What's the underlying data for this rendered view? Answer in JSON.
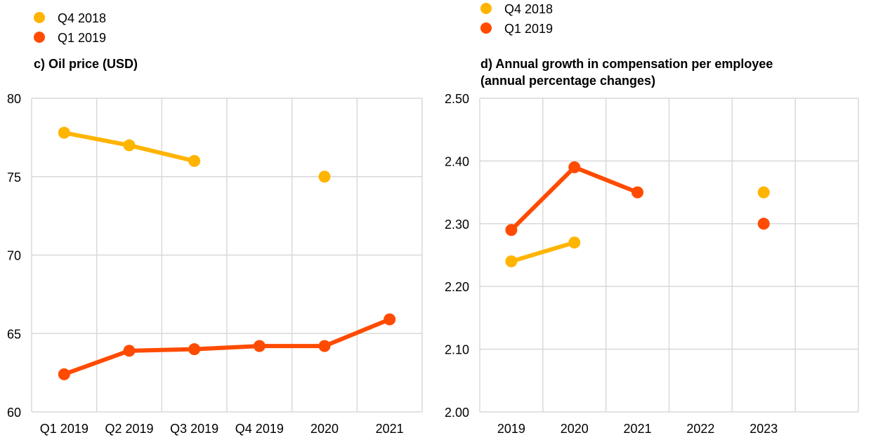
{
  "colors": {
    "q4_2018": "#FFB400",
    "q1_2019": "#FF4B00",
    "grid": "#d9d9d9"
  },
  "chart_data": [
    {
      "type": "line",
      "title": "c) Oil price (USD)",
      "legend": [
        "Q4 2018",
        "Q1 2019"
      ],
      "categories": [
        "Q1 2019",
        "Q2 2019",
        "Q3 2019",
        "Q4 2019",
        "2020",
        "2021"
      ],
      "ylim": [
        60,
        80
      ],
      "yticks": [
        "80",
        "75",
        "70",
        "65",
        "60"
      ],
      "series": [
        {
          "name": "Q4 2018",
          "color": "#FFB400",
          "values": [
            77.8,
            77.0,
            76.0,
            null,
            75.0,
            null
          ]
        },
        {
          "name": "Q1 2019",
          "color": "#FF4B00",
          "values": [
            62.4,
            63.9,
            64.0,
            64.2,
            64.2,
            65.9
          ]
        }
      ],
      "grid": true
    },
    {
      "type": "line",
      "title_lines": [
        "d) Annual growth in compensation per employee",
        "(annual percentage changes)"
      ],
      "legend": [
        "Q4 2018",
        "Q1 2019"
      ],
      "categories": [
        "2019",
        "2020",
        "2021",
        "2022",
        "2023"
      ],
      "ylim": [
        2.0,
        2.5
      ],
      "yticks": [
        "2.50",
        "2.40",
        "2.30",
        "2.20",
        "2.10",
        "2.00"
      ],
      "series": [
        {
          "name": "Q4 2018",
          "color": "#FFB400",
          "values": [
            2.24,
            2.27,
            null,
            null,
            2.35
          ]
        },
        {
          "name": "Q1 2019",
          "color": "#FF4B00",
          "values": [
            2.29,
            2.39,
            2.35,
            null,
            2.3
          ]
        }
      ],
      "grid": true
    }
  ]
}
